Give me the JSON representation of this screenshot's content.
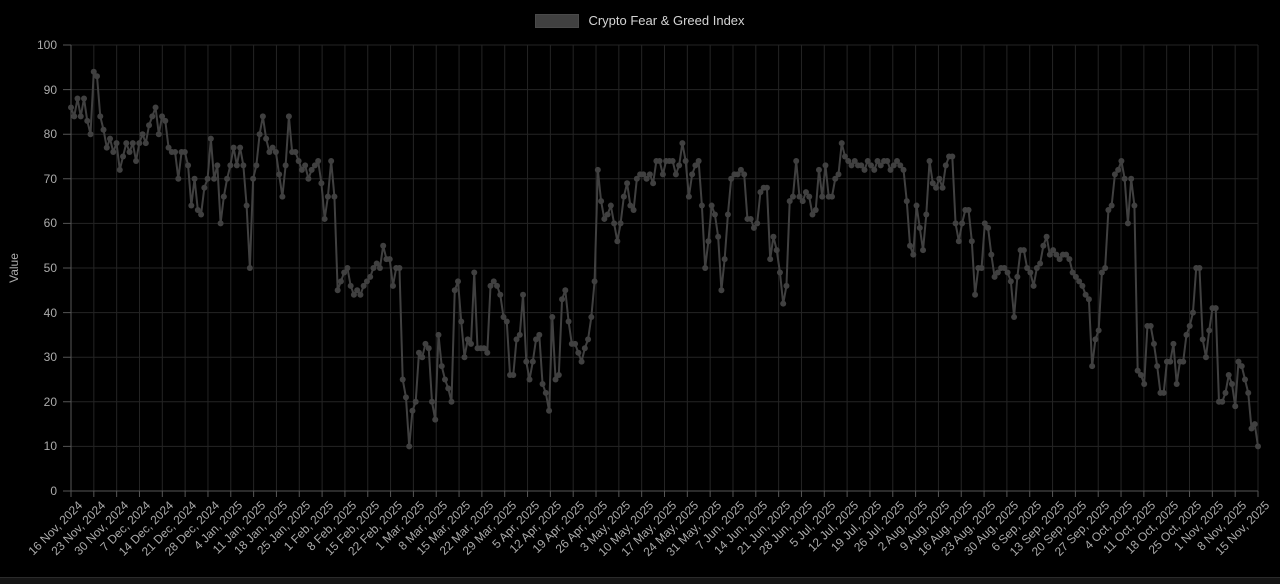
{
  "chart_data": {
    "type": "line",
    "title": "Crypto Fear & Greed Index",
    "xlabel": "",
    "ylabel": "Value",
    "ylim": [
      0,
      100
    ],
    "grid": true,
    "legend_position": "top",
    "y_ticks": [
      0,
      10,
      20,
      30,
      40,
      50,
      60,
      70,
      80,
      90,
      100
    ],
    "x_tick_interval_days": 7,
    "x_tick_labels": [
      "16 Nov, 2024",
      "23 Nov, 2024",
      "30 Nov, 2024",
      "7 Dec, 2024",
      "14 Dec, 2024",
      "21 Dec, 2024",
      "28 Dec, 2024",
      "4 Jan, 2025",
      "11 Jan, 2025",
      "18 Jan, 2025",
      "25 Jan, 2025",
      "1 Feb, 2025",
      "8 Feb, 2025",
      "15 Feb, 2025",
      "22 Feb, 2025",
      "1 Mar, 2025",
      "8 Mar, 2025",
      "15 Mar, 2025",
      "22 Mar, 2025",
      "29 Mar, 2025",
      "5 Apr, 2025",
      "12 Apr, 2025",
      "19 Apr, 2025",
      "26 Apr, 2025",
      "3 May, 2025",
      "10 May, 2025",
      "17 May, 2025",
      "24 May, 2025",
      "31 May, 2025",
      "7 Jun, 2025",
      "14 Jun, 2025",
      "21 Jun, 2025",
      "28 Jun, 2025",
      "5 Jul, 2025",
      "12 Jul, 2025",
      "19 Jul, 2025",
      "26 Jul, 2025",
      "2 Aug, 2025",
      "9 Aug, 2025",
      "16 Aug, 2025",
      "23 Aug, 2025",
      "30 Aug, 2025",
      "6 Sep, 2025",
      "13 Sep, 2025",
      "20 Sep, 2025",
      "27 Sep, 2025",
      "4 Oct, 2025",
      "11 Oct, 2025",
      "18 Oct, 2025",
      "25 Oct, 2025",
      "1 Nov, 2025",
      "8 Nov, 2025",
      "15 Nov, 2025"
    ],
    "series": [
      {
        "name": "Crypto Fear & Greed Index",
        "color": "#404040",
        "point_radius": 3,
        "line_width": 2,
        "values": [
          86,
          84,
          88,
          84,
          88,
          83,
          80,
          94,
          93,
          84,
          81,
          77,
          79,
          76,
          78,
          72,
          75,
          78,
          76,
          78,
          74,
          78,
          80,
          78,
          82,
          84,
          86,
          80,
          84,
          83,
          77,
          76,
          76,
          70,
          76,
          76,
          73,
          64,
          70,
          63,
          62,
          68,
          70,
          79,
          70,
          73,
          60,
          66,
          70,
          73,
          77,
          73,
          77,
          73,
          64,
          50,
          70,
          73,
          80,
          84,
          79,
          76,
          77,
          76,
          71,
          66,
          73,
          84,
          76,
          76,
          74,
          72,
          73,
          70,
          72,
          73,
          74,
          69,
          61,
          66,
          74,
          66,
          45,
          47,
          49,
          50,
          46,
          44,
          45,
          44,
          46,
          47,
          48,
          50,
          51,
          50,
          55,
          52,
          52,
          46,
          50,
          50,
          25,
          21,
          10,
          18,
          20,
          31,
          30,
          33,
          32,
          20,
          16,
          35,
          28,
          25,
          23,
          20,
          45,
          47,
          38,
          30,
          34,
          33,
          49,
          32,
          32,
          32,
          31,
          46,
          47,
          46,
          44,
          39,
          38,
          26,
          26,
          34,
          35,
          44,
          29,
          25,
          29,
          34,
          35,
          24,
          22,
          18,
          39,
          25,
          26,
          43,
          45,
          38,
          33,
          33,
          31,
          29,
          32,
          34,
          39,
          47,
          72,
          65,
          61,
          62,
          64,
          60,
          56,
          60,
          66,
          69,
          64,
          63,
          70,
          71,
          71,
          70,
          71,
          69,
          74,
          74,
          71,
          74,
          74,
          74,
          71,
          73,
          78,
          74,
          66,
          71,
          73,
          74,
          64,
          50,
          56,
          64,
          62,
          57,
          45,
          52,
          62,
          70,
          71,
          71,
          72,
          71,
          61,
          61,
          59,
          60,
          67,
          68,
          68,
          52,
          57,
          54,
          49,
          42,
          46,
          65,
          66,
          74,
          66,
          65,
          67,
          66,
          62,
          63,
          72,
          66,
          73,
          66,
          66,
          70,
          71,
          78,
          75,
          74,
          73,
          74,
          73,
          73,
          72,
          74,
          73,
          72,
          74,
          73,
          74,
          74,
          72,
          73,
          74,
          73,
          72,
          65,
          55,
          53,
          64,
          59,
          54,
          62,
          74,
          69,
          68,
          70,
          68,
          73,
          75,
          75,
          60,
          56,
          60,
          63,
          63,
          56,
          44,
          50,
          50,
          60,
          59,
          53,
          48,
          49,
          50,
          50,
          49,
          47,
          39,
          48,
          54,
          54,
          50,
          49,
          46,
          50,
          51,
          55,
          57,
          53,
          54,
          53,
          52,
          53,
          53,
          52,
          49,
          48,
          47,
          46,
          44,
          43,
          28,
          34,
          36,
          49,
          50,
          63,
          64,
          71,
          72,
          74,
          70,
          60,
          70,
          64,
          27,
          26,
          24,
          37,
          37,
          33,
          28,
          22,
          22,
          29,
          29,
          33,
          24,
          29,
          29,
          35,
          37,
          40,
          50,
          50,
          34,
          30,
          36,
          41,
          41,
          20,
          20,
          22,
          26,
          24,
          19,
          29,
          28,
          25,
          22,
          14,
          15,
          10
        ]
      }
    ],
    "colors": {
      "background": "#000000",
      "line": "#404040",
      "grid": "#242424",
      "axis": "#565656",
      "tick_text": "#ababab",
      "legend_text": "#d4d4d4"
    }
  }
}
